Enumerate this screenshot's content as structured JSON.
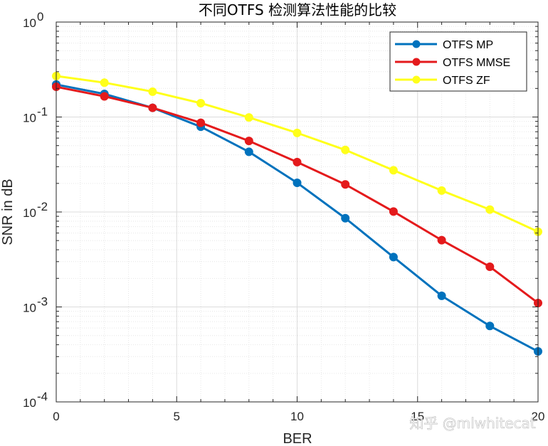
{
  "chart_data": {
    "type": "line",
    "title": "不同OTFS 检测算法性能的比较",
    "xlabel": "BER",
    "ylabel": "SNR in dB",
    "xlim": [
      0,
      20
    ],
    "ylim": [
      0.0001,
      1
    ],
    "yscale": "log",
    "grid": true,
    "minor_grid": true,
    "legend_position": "top-right",
    "x_ticks": [
      "0",
      "5",
      "10",
      "15",
      "20"
    ],
    "y_ticks": [
      {
        "base": "10",
        "exp": "0"
      },
      {
        "base": "10",
        "exp": "-1"
      },
      {
        "base": "10",
        "exp": "-2"
      },
      {
        "base": "10",
        "exp": "-3"
      },
      {
        "base": "10",
        "exp": "-4"
      }
    ],
    "x": [
      0,
      2,
      4,
      6,
      8,
      10,
      12,
      14,
      16,
      18,
      20
    ],
    "series": [
      {
        "name": "OTFS MP",
        "color": "#0072BD",
        "values": [
          0.22,
          0.175,
          0.125,
          0.079,
          0.043,
          0.0203,
          0.0086,
          0.00335,
          0.00131,
          0.00063,
          0.00034
        ]
      },
      {
        "name": "OTFS MMSE",
        "color": "#E41A1C",
        "values": [
          0.208,
          0.165,
          0.125,
          0.087,
          0.056,
          0.0335,
          0.0195,
          0.0101,
          0.00505,
          0.00265,
          0.0011
        ]
      },
      {
        "name": "OTFS ZF",
        "color": "#FFFF1A",
        "values": [
          0.27,
          0.23,
          0.185,
          0.14,
          0.099,
          0.068,
          0.045,
          0.0275,
          0.0168,
          0.0106,
          0.0062
        ]
      }
    ]
  },
  "watermark": "知乎 @mlwhitecat"
}
